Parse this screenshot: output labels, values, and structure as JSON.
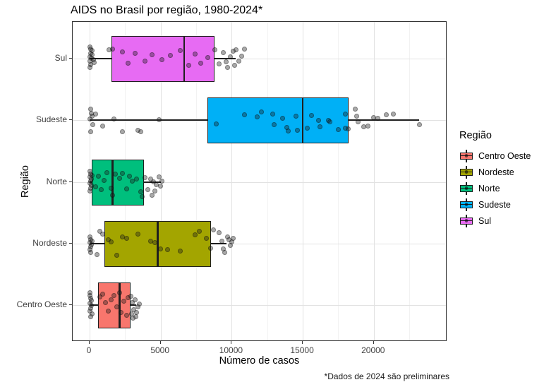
{
  "title": "AIDS no Brasil por região, 1980-2024*",
  "footnote": "*Dados de 2024 são preliminares",
  "legend": {
    "title": "Região",
    "items": [
      {
        "label": "Centro Oeste",
        "color": "#F8766D"
      },
      {
        "label": "Nordeste",
        "color": "#A3A500"
      },
      {
        "label": "Norte",
        "color": "#00BF7D"
      },
      {
        "label": "Sudeste",
        "color": "#00B0F6"
      },
      {
        "label": "Sul",
        "color": "#E76BF3"
      }
    ]
  },
  "chart_data": {
    "type": "boxplot",
    "orientation": "horizontal",
    "overlay": "jittered points (one per year, 1980-2024)",
    "title": "AIDS no Brasil por região, 1980-2024*",
    "xlabel": "Número de casos",
    "ylabel": "Região",
    "x_ticks": [
      0,
      5000,
      10000,
      15000,
      20000
    ],
    "x_minor_ticks": [
      2500,
      7500,
      12500,
      17500,
      22500
    ],
    "xlim": [
      -1200,
      25200
    ],
    "grid": true,
    "legend_position": "right",
    "categories_top_to_bottom": [
      "Sul",
      "Sudeste",
      "Norte",
      "Nordeste",
      "Centro Oeste"
    ],
    "regions": [
      {
        "name": "Sul",
        "color": "#E76BF3",
        "box": {
          "whisker_low": 0,
          "q1": 1550,
          "median": 6650,
          "q3": 8800,
          "whisker_high": 10300
        },
        "points": [
          [
            30,
            -17
          ],
          [
            80,
            -8
          ],
          [
            150,
            -6
          ],
          [
            10,
            -3
          ],
          [
            120,
            -1
          ],
          [
            260,
            1
          ],
          [
            40,
            3
          ],
          [
            330,
            5
          ],
          [
            90,
            8
          ],
          [
            10,
            12
          ],
          [
            180,
            -12
          ],
          [
            60,
            -14
          ],
          [
            1350,
            -13
          ],
          [
            1600,
            -14
          ],
          [
            2300,
            -10
          ],
          [
            2700,
            6
          ],
          [
            3200,
            -8
          ],
          [
            3900,
            3
          ],
          [
            4400,
            -6
          ],
          [
            5100,
            1
          ],
          [
            5700,
            -5
          ],
          [
            6400,
            -12
          ],
          [
            7000,
            9
          ],
          [
            7400,
            -7
          ],
          [
            7800,
            6
          ],
          [
            8300,
            -2
          ],
          [
            8800,
            -13
          ],
          [
            9100,
            7
          ],
          [
            9400,
            -9
          ],
          [
            9600,
            4
          ],
          [
            9900,
            -3
          ],
          [
            10100,
            -11
          ],
          [
            10300,
            -13
          ],
          [
            10500,
            3
          ],
          [
            10700,
            -4
          ],
          [
            10900,
            -14
          ],
          [
            10200,
            9
          ],
          [
            9700,
            12
          ]
        ]
      },
      {
        "name": "Sudeste",
        "color": "#00B0F6",
        "box": {
          "whisker_low": 0,
          "q1": 8300,
          "median": 15000,
          "q3": 18200,
          "whisker_high": 23200
        },
        "points": [
          [
            50,
            -16
          ],
          [
            100,
            -10
          ],
          [
            150,
            -6
          ],
          [
            30,
            -2
          ],
          [
            200,
            6
          ],
          [
            80,
            16
          ],
          [
            400,
            -9
          ],
          [
            900,
            8
          ],
          [
            1700,
            -2
          ],
          [
            2300,
            16
          ],
          [
            3400,
            14
          ],
          [
            3600,
            16
          ],
          [
            4900,
            -1
          ],
          [
            8900,
            5
          ],
          [
            10900,
            -8
          ],
          [
            11800,
            -5
          ],
          [
            12100,
            -12
          ],
          [
            12900,
            -9
          ],
          [
            13000,
            6
          ],
          [
            13600,
            -3
          ],
          [
            13900,
            10
          ],
          [
            14000,
            15
          ],
          [
            14500,
            -6
          ],
          [
            14600,
            14
          ],
          [
            15300,
            11
          ],
          [
            15600,
            -7
          ],
          [
            16100,
            0
          ],
          [
            16200,
            9
          ],
          [
            16800,
            0
          ],
          [
            16900,
            2
          ],
          [
            17500,
            13
          ],
          [
            18000,
            -9
          ],
          [
            18000,
            11
          ],
          [
            18200,
            12
          ],
          [
            18700,
            -16
          ],
          [
            18800,
            -6
          ],
          [
            18900,
            2
          ],
          [
            19300,
            9
          ],
          [
            19600,
            8
          ],
          [
            20000,
            -4
          ],
          [
            20300,
            -3
          ],
          [
            20900,
            -8
          ],
          [
            21400,
            -9
          ],
          [
            23200,
            6
          ]
        ]
      },
      {
        "name": "Norte",
        "color": "#00BF7D",
        "box": {
          "whisker_low": 0,
          "q1": 150,
          "median": 1600,
          "q3": 3800,
          "whisker_high": 5000
        },
        "points": [
          [
            40,
            -16
          ],
          [
            90,
            -12
          ],
          [
            20,
            -8
          ],
          [
            130,
            -5
          ],
          [
            60,
            -2
          ],
          [
            10,
            1
          ],
          [
            110,
            4
          ],
          [
            70,
            8
          ],
          [
            30,
            12
          ],
          [
            160,
            -10
          ],
          [
            400,
            6
          ],
          [
            600,
            -9
          ],
          [
            800,
            10
          ],
          [
            1000,
            -3
          ],
          [
            1200,
            -14
          ],
          [
            1500,
            8
          ],
          [
            1600,
            18
          ],
          [
            1800,
            -12
          ],
          [
            2100,
            -6
          ],
          [
            2300,
            -13
          ],
          [
            2600,
            9
          ],
          [
            2800,
            -9
          ],
          [
            3000,
            -2
          ],
          [
            3300,
            -5
          ],
          [
            3600,
            13
          ],
          [
            3900,
            -7
          ],
          [
            4100,
            10
          ],
          [
            4300,
            -5
          ],
          [
            4500,
            -1
          ],
          [
            4700,
            3
          ],
          [
            4900,
            -8
          ],
          [
            5000,
            5
          ],
          [
            5100,
            -2
          ],
          [
            4600,
            12
          ],
          [
            4400,
            18
          ],
          [
            3700,
            20
          ]
        ]
      },
      {
        "name": "Nordeste",
        "color": "#A3A500",
        "box": {
          "whisker_low": 50,
          "q1": 1050,
          "median": 4800,
          "q3": 8550,
          "whisker_high": 9650
        },
        "points": [
          [
            30,
            -10
          ],
          [
            80,
            -6
          ],
          [
            10,
            -2
          ],
          [
            120,
            1
          ],
          [
            60,
            4
          ],
          [
            40,
            8
          ],
          [
            150,
            -4
          ],
          [
            90,
            12
          ],
          [
            700,
            -18
          ],
          [
            900,
            -14
          ],
          [
            500,
            15
          ],
          [
            1300,
            -6
          ],
          [
            1500,
            -3
          ],
          [
            1900,
            16
          ],
          [
            2300,
            -10
          ],
          [
            2600,
            -8
          ],
          [
            3400,
            -14
          ],
          [
            4300,
            -4
          ],
          [
            4600,
            -2
          ],
          [
            5000,
            7
          ],
          [
            5500,
            8
          ],
          [
            6400,
            10
          ],
          [
            7400,
            -13
          ],
          [
            7700,
            -18
          ],
          [
            8200,
            -8
          ],
          [
            8500,
            6
          ],
          [
            9100,
            -16
          ],
          [
            9300,
            -4
          ],
          [
            9500,
            12
          ],
          [
            9700,
            -10
          ],
          [
            9800,
            -6
          ],
          [
            10000,
            -3
          ],
          [
            10100,
            -8
          ],
          [
            9900,
            2
          ],
          [
            9400,
            7
          ],
          [
            8700,
            -20
          ]
        ]
      },
      {
        "name": "Centro Oeste",
        "color": "#F8766D",
        "box": {
          "whisker_low": 50,
          "q1": 600,
          "median": 2100,
          "q3": 2900,
          "whisker_high": 3300
        },
        "points": [
          [
            20,
            -14
          ],
          [
            60,
            -10
          ],
          [
            100,
            -7
          ],
          [
            30,
            -3
          ],
          [
            130,
            0
          ],
          [
            70,
            4
          ],
          [
            10,
            8
          ],
          [
            150,
            12
          ],
          [
            90,
            16
          ],
          [
            40,
            -18
          ],
          [
            700,
            -12
          ],
          [
            900,
            -16
          ],
          [
            1100,
            -4
          ],
          [
            1300,
            8
          ],
          [
            1500,
            -8
          ],
          [
            1700,
            -14
          ],
          [
            1900,
            2
          ],
          [
            2100,
            -18
          ],
          [
            2200,
            10
          ],
          [
            2400,
            -6
          ],
          [
            2600,
            14
          ],
          [
            2700,
            -11
          ],
          [
            2900,
            -13
          ],
          [
            3000,
            -4
          ],
          [
            3100,
            6
          ],
          [
            3200,
            -8
          ],
          [
            3300,
            10
          ],
          [
            3400,
            2
          ],
          [
            3500,
            -2
          ],
          [
            3250,
            16
          ],
          [
            3050,
            18
          ],
          [
            2950,
            12
          ]
        ]
      }
    ]
  }
}
